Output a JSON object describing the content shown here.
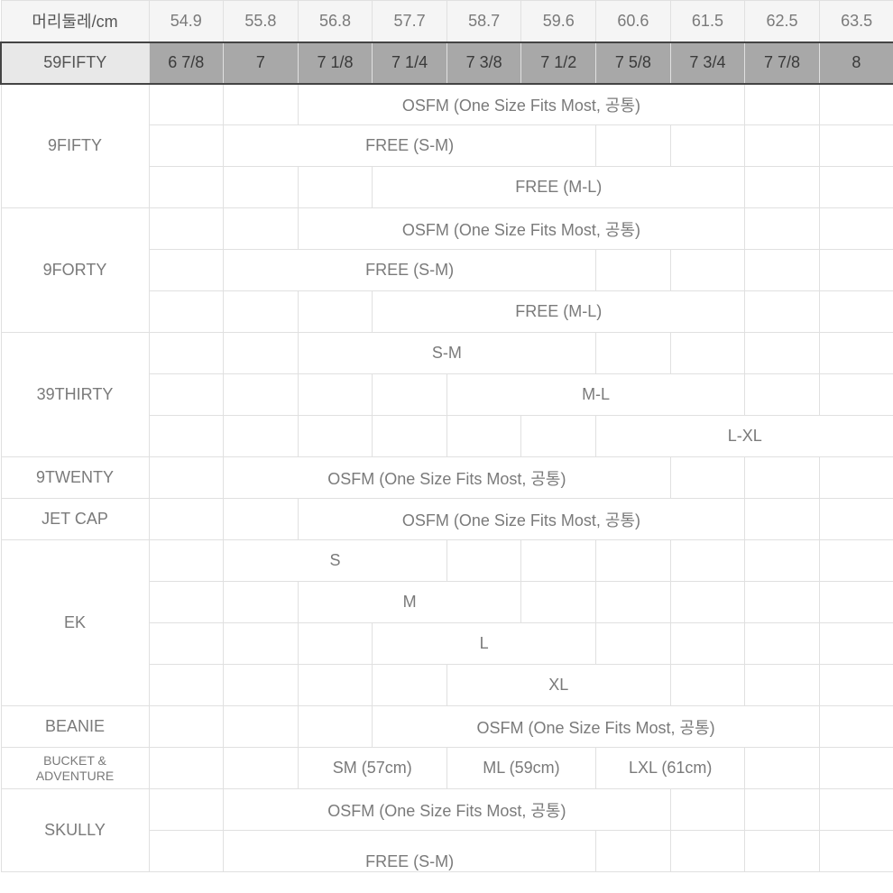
{
  "header": {
    "label": "머리둘레/cm",
    "sizes": [
      "54.9",
      "55.8",
      "56.8",
      "57.7",
      "58.7",
      "59.6",
      "60.6",
      "61.5",
      "62.5",
      "63.5"
    ]
  },
  "row_59fifty": {
    "label": "59FIFTY",
    "sizes": [
      "6 7/8",
      "7",
      "7 1/8",
      "7 1/4",
      "7 3/8",
      "7 1/2",
      "7 5/8",
      "7 3/4",
      "7 7/8",
      "8"
    ]
  },
  "labels": {
    "9fifty": "9FIFTY",
    "9forty": "9FORTY",
    "39thirty": "39THIRTY",
    "9twenty": "9TWENTY",
    "jetcap": "JET CAP",
    "ek": "EK",
    "beanie": "BEANIE",
    "bucket": "BUCKET &\nADVENTURE",
    "skully": "SKULLY"
  },
  "spans": {
    "osfm": "OSFM (One Size Fits Most, 공통)",
    "free_sm": "FREE (S-M)",
    "free_ml": "FREE (M-L)",
    "sm": "S-M",
    "ml": "M-L",
    "lxl": "L-XL",
    "s": "S",
    "m": "M",
    "l": "L",
    "xl": "XL",
    "sm57": "SM (57cm)",
    "ml59": "ML (59cm)",
    "lxl61": "LXL (61cm)"
  },
  "colors": {
    "border": "#e0e0e0",
    "text": "#7a7a7a",
    "header_bg": "#f5f5f5",
    "highlight_bg": "#a8a8a8",
    "highlight_label_bg": "#e8e8e8",
    "highlight_border": "#444444"
  }
}
